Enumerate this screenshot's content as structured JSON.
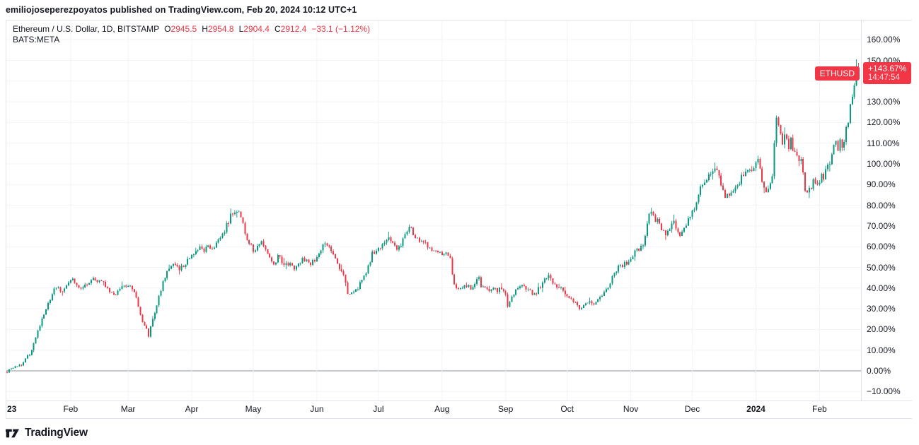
{
  "attribution": "emiliojoseperezpoyatos published on TradingView.com, Feb 20, 2024 10:12 UTC+1",
  "chart_header": {
    "symbol_title": "Ethereum / U.S. Dollar, 1D, BITSTAMP",
    "ohlc": {
      "o_label": "O",
      "o": "2945.5",
      "h_label": "H",
      "h": "2954.8",
      "l_label": "L",
      "l": "2904.4",
      "c_label": "C",
      "c": "2912.4",
      "change": "−33.1 (−1.12%)"
    },
    "secondary_symbol": "BATS:META"
  },
  "badges": {
    "symbol": "ETHUSD",
    "change_pct": "+143.67%",
    "countdown": "14:47:54"
  },
  "footer": {
    "brand": "TradingView"
  },
  "colors": {
    "up": "#089981",
    "down": "#F23645",
    "badge_bg": "#F23645",
    "grid": "#F0F3FA",
    "zero_line": "#B2B5BE",
    "frame": "#E0E3EB",
    "text": "#131722"
  },
  "chart_data": {
    "type": "candlestick",
    "title": "Ethereum / U.S. Dollar",
    "symbol": "ETHUSD",
    "exchange": "BITSTAMP",
    "timeframe": "1D",
    "scale": "percent-change",
    "current_bar": {
      "open": 2945.5,
      "high": 2954.8,
      "low": 2904.4,
      "close": 2912.4,
      "change": -33.1,
      "change_pct": -1.12
    },
    "performance_pct": 143.67,
    "peak_high_pct": 150.5,
    "y_ticks": [
      {
        "text": "160.00%",
        "pct": 160
      },
      {
        "text": "150.00%",
        "pct": 150
      },
      {
        "text": "130.00%",
        "pct": 130
      },
      {
        "text": "120.00%",
        "pct": 120
      },
      {
        "text": "110.00%",
        "pct": 110
      },
      {
        "text": "100.00%",
        "pct": 100
      },
      {
        "text": "90.00%",
        "pct": 90
      },
      {
        "text": "80.00%",
        "pct": 80
      },
      {
        "text": "70.00%",
        "pct": 70
      },
      {
        "text": "60.00%",
        "pct": 60
      },
      {
        "text": "50.00%",
        "pct": 50
      },
      {
        "text": "40.00%",
        "pct": 40
      },
      {
        "text": "30.00%",
        "pct": 30
      },
      {
        "text": "20.00%",
        "pct": 20
      },
      {
        "text": "10.00%",
        "pct": 10
      },
      {
        "text": "0.00%",
        "pct": 0
      },
      {
        "text": "−10.00%",
        "pct": -10
      }
    ],
    "grid_pcts": [
      160,
      150,
      140,
      130,
      120,
      110,
      100,
      90,
      80,
      70,
      60,
      50,
      40,
      30,
      20,
      10,
      0,
      -10
    ],
    "x_ticks": [
      {
        "text": "23",
        "day": 0,
        "bold": true,
        "left_edge": true
      },
      {
        "text": "Feb",
        "day": 31
      },
      {
        "text": "Mar",
        "day": 59
      },
      {
        "text": "Apr",
        "day": 90
      },
      {
        "text": "May",
        "day": 120
      },
      {
        "text": "Jun",
        "day": 151
      },
      {
        "text": "Jul",
        "day": 181
      },
      {
        "text": "Aug",
        "day": 212
      },
      {
        "text": "Sep",
        "day": 243
      },
      {
        "text": "Oct",
        "day": 273
      },
      {
        "text": "Nov",
        "day": 304
      },
      {
        "text": "Dec",
        "day": 334
      },
      {
        "text": "2024",
        "day": 365,
        "bold": true
      },
      {
        "text": "Feb",
        "day": 396
      }
    ],
    "anchors_day_pct": [
      [
        0,
        -0.5
      ],
      [
        2,
        1
      ],
      [
        4,
        2
      ],
      [
        7,
        3
      ],
      [
        9,
        6
      ],
      [
        11,
        8
      ],
      [
        13,
        13
      ],
      [
        15,
        19
      ],
      [
        17,
        25
      ],
      [
        19,
        30
      ],
      [
        21,
        34
      ],
      [
        23,
        39
      ],
      [
        25,
        41
      ],
      [
        26,
        38
      ],
      [
        28,
        40
      ],
      [
        30,
        42
      ],
      [
        32,
        44
      ],
      [
        34,
        41
      ],
      [
        36,
        39
      ],
      [
        38,
        42
      ],
      [
        40,
        43
      ],
      [
        42,
        44
      ],
      [
        44,
        42
      ],
      [
        46,
        44
      ],
      [
        48,
        41
      ],
      [
        50,
        38
      ],
      [
        52,
        36
      ],
      [
        54,
        39
      ],
      [
        56,
        41
      ],
      [
        58,
        40
      ],
      [
        60,
        41
      ],
      [
        62,
        38
      ],
      [
        64,
        31
      ],
      [
        66,
        24
      ],
      [
        68,
        20
      ],
      [
        69,
        17
      ],
      [
        70,
        22
      ],
      [
        72,
        28
      ],
      [
        74,
        36
      ],
      [
        76,
        43
      ],
      [
        78,
        48
      ],
      [
        80,
        50
      ],
      [
        82,
        52
      ],
      [
        84,
        49
      ],
      [
        86,
        51
      ],
      [
        88,
        54
      ],
      [
        90,
        55
      ],
      [
        92,
        57
      ],
      [
        94,
        60
      ],
      [
        96,
        58
      ],
      [
        98,
        61
      ],
      [
        100,
        59
      ],
      [
        102,
        62
      ],
      [
        104,
        65
      ],
      [
        106,
        68
      ],
      [
        108,
        72
      ],
      [
        110,
        77
      ],
      [
        112,
        78
      ],
      [
        113,
        76
      ],
      [
        115,
        72
      ],
      [
        116,
        65
      ],
      [
        118,
        62
      ],
      [
        120,
        58
      ],
      [
        122,
        61
      ],
      [
        124,
        63
      ],
      [
        126,
        58
      ],
      [
        128,
        54
      ],
      [
        130,
        52
      ],
      [
        132,
        55
      ],
      [
        134,
        53
      ],
      [
        136,
        51
      ],
      [
        138,
        53
      ],
      [
        140,
        50
      ],
      [
        142,
        52
      ],
      [
        144,
        54
      ],
      [
        146,
        53
      ],
      [
        148,
        52
      ],
      [
        150,
        54
      ],
      [
        152,
        57
      ],
      [
        154,
        60
      ],
      [
        156,
        61
      ],
      [
        158,
        58
      ],
      [
        160,
        55
      ],
      [
        162,
        50
      ],
      [
        164,
        46
      ],
      [
        166,
        38
      ],
      [
        168,
        37
      ],
      [
        170,
        39
      ],
      [
        172,
        42
      ],
      [
        174,
        45
      ],
      [
        176,
        50
      ],
      [
        178,
        57
      ],
      [
        180,
        58
      ],
      [
        182,
        59
      ],
      [
        184,
        62
      ],
      [
        186,
        64
      ],
      [
        188,
        62
      ],
      [
        190,
        59
      ],
      [
        192,
        61
      ],
      [
        194,
        65
      ],
      [
        196,
        70
      ],
      [
        198,
        66
      ],
      [
        200,
        64
      ],
      [
        202,
        63
      ],
      [
        204,
        61
      ],
      [
        206,
        60
      ],
      [
        208,
        58
      ],
      [
        210,
        57
      ],
      [
        212,
        57
      ],
      [
        214,
        56
      ],
      [
        216,
        55
      ],
      [
        217,
        47
      ],
      [
        218,
        41
      ],
      [
        220,
        39
      ],
      [
        222,
        40
      ],
      [
        224,
        41
      ],
      [
        226,
        40
      ],
      [
        228,
        42
      ],
      [
        230,
        45
      ],
      [
        231,
        41
      ],
      [
        233,
        40
      ],
      [
        235,
        39
      ],
      [
        237,
        40
      ],
      [
        239,
        39
      ],
      [
        241,
        40
      ],
      [
        243,
        36
      ],
      [
        244,
        32
      ],
      [
        246,
        36
      ],
      [
        248,
        39
      ],
      [
        250,
        40
      ],
      [
        252,
        41
      ],
      [
        254,
        39
      ],
      [
        256,
        37
      ],
      [
        258,
        38
      ],
      [
        260,
        41
      ],
      [
        262,
        44
      ],
      [
        264,
        46
      ],
      [
        266,
        43
      ],
      [
        268,
        41
      ],
      [
        270,
        40
      ],
      [
        272,
        38
      ],
      [
        274,
        36
      ],
      [
        276,
        34
      ],
      [
        278,
        31
      ],
      [
        280,
        30
      ],
      [
        282,
        33
      ],
      [
        284,
        34
      ],
      [
        286,
        33
      ],
      [
        288,
        34
      ],
      [
        290,
        36
      ],
      [
        292,
        40
      ],
      [
        294,
        42
      ],
      [
        296,
        48
      ],
      [
        298,
        50
      ],
      [
        300,
        51
      ],
      [
        302,
        52
      ],
      [
        304,
        54
      ],
      [
        306,
        57
      ],
      [
        308,
        59
      ],
      [
        310,
        61
      ],
      [
        312,
        72
      ],
      [
        313,
        77
      ],
      [
        315,
        74
      ],
      [
        317,
        72
      ],
      [
        319,
        68
      ],
      [
        321,
        66
      ],
      [
        323,
        69
      ],
      [
        325,
        72
      ],
      [
        326,
        68
      ],
      [
        328,
        66
      ],
      [
        330,
        70
      ],
      [
        332,
        73
      ],
      [
        334,
        76
      ],
      [
        336,
        82
      ],
      [
        338,
        88
      ],
      [
        340,
        91
      ],
      [
        342,
        94
      ],
      [
        344,
        97
      ],
      [
        345,
        99
      ],
      [
        347,
        93
      ],
      [
        349,
        87
      ],
      [
        350,
        84
      ],
      [
        352,
        86
      ],
      [
        354,
        88
      ],
      [
        356,
        90
      ],
      [
        358,
        93
      ],
      [
        360,
        96
      ],
      [
        362,
        98
      ],
      [
        364,
        97
      ],
      [
        365,
        99
      ],
      [
        366,
        101
      ],
      [
        367,
        97
      ],
      [
        368,
        92
      ],
      [
        369,
        88
      ],
      [
        370,
        86
      ],
      [
        371,
        88
      ],
      [
        372,
        90
      ],
      [
        373,
        94
      ],
      [
        374,
        112
      ],
      [
        375,
        123
      ],
      [
        376,
        120
      ],
      [
        377,
        114
      ],
      [
        378,
        111
      ],
      [
        379,
        115
      ],
      [
        380,
        112
      ],
      [
        381,
        109
      ],
      [
        382,
        111
      ],
      [
        383,
        108
      ],
      [
        384,
        105
      ],
      [
        385,
        103
      ],
      [
        386,
        101
      ],
      [
        387,
        103
      ],
      [
        388,
        95
      ],
      [
        389,
        88
      ],
      [
        390,
        85
      ],
      [
        391,
        87
      ],
      [
        392,
        89
      ],
      [
        393,
        91
      ],
      [
        394,
        90
      ],
      [
        395,
        91
      ],
      [
        396,
        92
      ],
      [
        397,
        94
      ],
      [
        398,
        93
      ],
      [
        399,
        96
      ],
      [
        400,
        99
      ],
      [
        401,
        100
      ],
      [
        402,
        103
      ],
      [
        403,
        108
      ],
      [
        404,
        110
      ],
      [
        405,
        107
      ],
      [
        406,
        110
      ],
      [
        407,
        109
      ],
      [
        408,
        112
      ],
      [
        409,
        117
      ],
      [
        410,
        121
      ],
      [
        411,
        127
      ],
      [
        412,
        132
      ],
      [
        413,
        138
      ],
      [
        414,
        147
      ],
      [
        415,
        143.67
      ]
    ]
  }
}
